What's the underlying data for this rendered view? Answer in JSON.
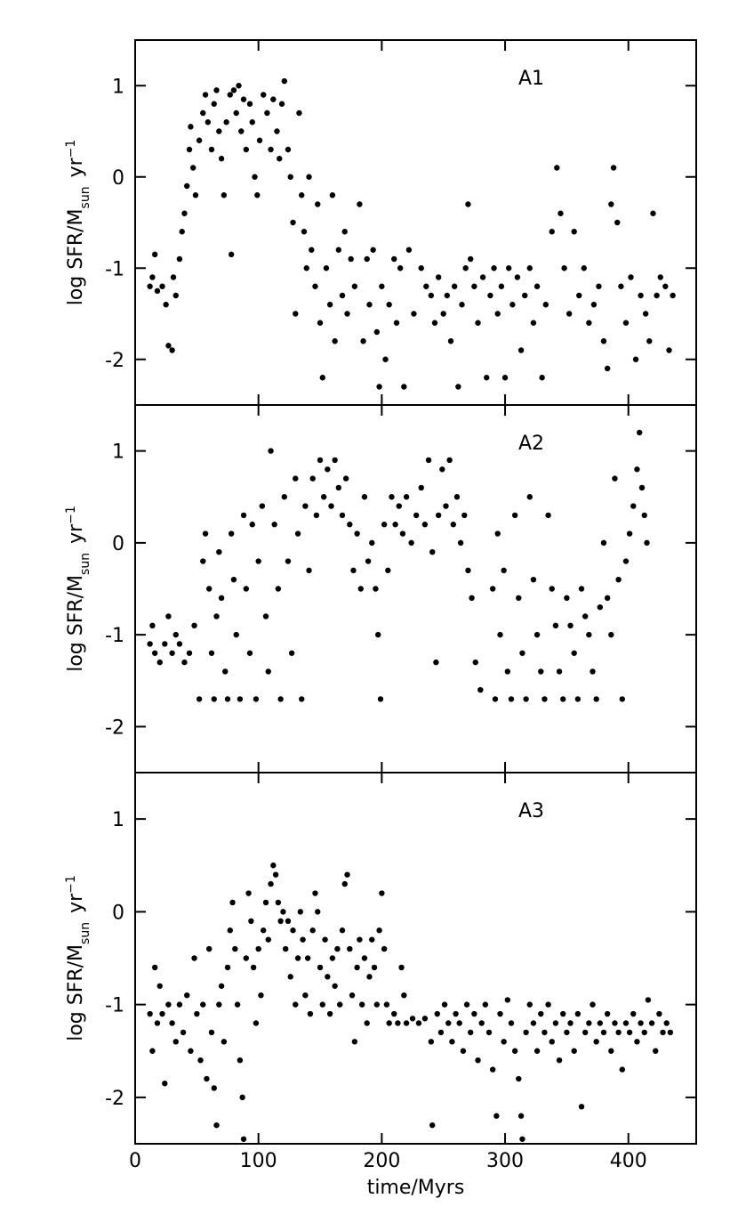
{
  "chart_data": [
    {
      "type": "scatter",
      "label": "A1",
      "ylabel": {
        "main": "log  SFR/M",
        "sub": "sun",
        "unit": "yr",
        "sup": "−1"
      },
      "xlim": [
        0,
        455
      ],
      "ylim": [
        -2.5,
        1.5
      ],
      "xticks": [
        0,
        100,
        200,
        300,
        400
      ],
      "yticks": [
        -2,
        -1,
        0,
        1
      ],
      "xtick_labels": false,
      "series": [
        {
          "color": "#000000",
          "x": [
            12,
            14,
            16,
            18,
            22,
            25,
            27,
            30,
            31,
            33,
            36,
            38,
            40,
            42,
            44,
            45,
            47,
            49,
            52,
            55,
            57,
            59,
            62,
            64,
            66,
            68,
            70,
            72,
            74,
            77,
            78,
            80,
            82,
            84,
            86,
            88,
            90,
            93,
            95,
            97,
            99,
            101,
            104,
            107,
            110,
            112,
            115,
            117,
            119,
            121,
            124,
            126,
            128,
            130,
            133,
            135,
            137,
            139,
            141,
            143,
            146,
            148,
            150,
            152,
            155,
            158,
            160,
            162,
            165,
            168,
            170,
            172,
            175,
            178,
            182,
            185,
            188,
            190,
            193,
            196,
            198,
            200,
            203,
            206,
            210,
            212,
            215,
            218,
            222,
            226,
            232,
            236,
            240,
            243,
            246,
            250,
            253,
            256,
            259,
            262,
            265,
            268,
            270,
            272,
            275,
            278,
            282,
            285,
            288,
            291,
            294,
            297,
            300,
            303,
            306,
            310,
            313,
            316,
            320,
            323,
            326,
            330,
            333,
            338,
            342,
            345,
            348,
            352,
            356,
            360,
            364,
            368,
            372,
            376,
            380,
            383,
            386,
            388,
            391,
            394,
            398,
            402,
            406,
            410,
            414,
            417,
            420,
            423,
            426,
            430,
            433,
            436
          ],
          "values": [
            -1.2,
            -1.1,
            -0.85,
            -1.25,
            -1.2,
            -1.4,
            -1.85,
            -1.9,
            -1.1,
            -1.3,
            -0.9,
            -0.6,
            -0.4,
            -0.1,
            0.3,
            0.55,
            0.1,
            -0.2,
            0.4,
            0.7,
            0.9,
            0.6,
            0.3,
            0.8,
            0.95,
            0.5,
            0.2,
            -0.2,
            0.6,
            0.9,
            -0.85,
            0.95,
            0.7,
            1.0,
            0.5,
            0.85,
            0.3,
            0.8,
            0.6,
            0.0,
            -0.2,
            0.4,
            0.9,
            0.7,
            0.3,
            0.85,
            0.5,
            0.2,
            0.8,
            1.05,
            0.3,
            0.0,
            -0.5,
            -1.5,
            0.7,
            -0.2,
            -0.6,
            -1.0,
            0.0,
            -0.8,
            -1.2,
            -0.3,
            -1.6,
            -2.2,
            -1.0,
            -1.4,
            -0.2,
            -1.8,
            -0.8,
            -1.3,
            -0.6,
            -1.5,
            -0.9,
            -1.2,
            -0.3,
            -1.8,
            -0.9,
            -1.4,
            -0.8,
            -1.7,
            -2.3,
            -1.2,
            -2.0,
            -1.4,
            -0.9,
            -1.6,
            -1.0,
            -2.3,
            -0.8,
            -1.5,
            -1.0,
            -1.2,
            -1.3,
            -1.6,
            -1.1,
            -1.5,
            -1.3,
            -1.8,
            -1.2,
            -2.3,
            -1.4,
            -1.0,
            -0.3,
            -0.9,
            -1.2,
            -1.6,
            -1.1,
            -2.2,
            -1.3,
            -1.0,
            -1.5,
            -1.2,
            -2.2,
            -1.0,
            -1.4,
            -1.1,
            -1.9,
            -1.3,
            -1.0,
            -1.6,
            -1.2,
            -2.2,
            -1.4,
            -0.6,
            0.1,
            -0.4,
            -1.0,
            -1.5,
            -0.6,
            -1.3,
            -1.0,
            -1.6,
            -1.4,
            -1.2,
            -1.8,
            -2.1,
            -0.3,
            0.1,
            -0.5,
            -1.2,
            -1.6,
            -1.1,
            -2.0,
            -1.3,
            -1.5,
            -1.8,
            -0.4,
            -1.3,
            -1.1,
            -1.2,
            -1.9,
            -1.3
          ]
        }
      ]
    },
    {
      "type": "scatter",
      "label": "A2",
      "ylabel": {
        "main": "log  SFR/M",
        "sub": "sun",
        "unit": "yr",
        "sup": "−1"
      },
      "xlim": [
        0,
        455
      ],
      "ylim": [
        -2.5,
        1.5
      ],
      "xticks": [
        0,
        100,
        200,
        300,
        400
      ],
      "yticks": [
        -2,
        -1,
        0,
        1
      ],
      "xtick_labels": false,
      "series": [
        {
          "color": "#000000",
          "x": [
            12,
            14,
            16,
            20,
            24,
            27,
            30,
            33,
            36,
            40,
            44,
            48,
            52,
            55,
            57,
            60,
            62,
            64,
            66,
            68,
            70,
            73,
            75,
            78,
            80,
            82,
            85,
            88,
            90,
            93,
            95,
            98,
            100,
            103,
            106,
            108,
            110,
            113,
            116,
            118,
            121,
            124,
            127,
            130,
            132,
            135,
            138,
            141,
            144,
            147,
            150,
            153,
            156,
            159,
            162,
            165,
            168,
            171,
            174,
            177,
            180,
            183,
            186,
            189,
            192,
            195,
            197,
            199,
            202,
            205,
            208,
            211,
            214,
            217,
            220,
            224,
            228,
            232,
            235,
            238,
            241,
            244,
            246,
            249,
            252,
            255,
            258,
            261,
            264,
            267,
            270,
            273,
            276,
            280,
            290,
            292,
            294,
            296,
            299,
            302,
            305,
            308,
            311,
            314,
            317,
            320,
            323,
            326,
            329,
            332,
            335,
            338,
            341,
            344,
            347,
            350,
            353,
            356,
            359,
            362,
            365,
            368,
            371,
            374,
            377,
            380,
            383,
            386,
            389,
            392,
            395,
            398,
            401,
            404,
            407,
            409,
            411,
            413,
            415
          ],
          "values": [
            -1.1,
            -0.9,
            -1.2,
            -1.3,
            -1.1,
            -0.8,
            -1.2,
            -1.0,
            -1.1,
            -1.3,
            -1.2,
            -0.9,
            -1.7,
            -0.2,
            0.1,
            -0.5,
            -1.2,
            -1.7,
            -0.8,
            -0.1,
            -0.6,
            -1.4,
            -1.7,
            0.1,
            -0.4,
            -1.0,
            -1.7,
            0.3,
            -0.5,
            -1.2,
            0.2,
            -1.7,
            -0.2,
            0.4,
            -0.8,
            -1.4,
            1.0,
            0.2,
            -0.5,
            -1.7,
            0.5,
            -0.2,
            -1.2,
            0.7,
            0.1,
            -1.7,
            0.4,
            -0.3,
            0.7,
            0.3,
            0.9,
            0.5,
            0.8,
            0.4,
            0.9,
            0.6,
            0.3,
            0.7,
            0.2,
            -0.3,
            0.1,
            -0.5,
            0.5,
            -0.2,
            0.0,
            -0.5,
            -1.0,
            -1.7,
            0.2,
            -0.3,
            0.5,
            0.2,
            0.4,
            0.1,
            0.5,
            0.0,
            0.3,
            0.6,
            0.2,
            0.9,
            -0.1,
            -1.3,
            0.3,
            0.8,
            0.4,
            0.9,
            0.2,
            0.5,
            0.0,
            0.3,
            -0.3,
            -0.6,
            -1.3,
            -1.6,
            -0.5,
            -1.7,
            0.1,
            -1.0,
            -0.3,
            -1.4,
            -1.7,
            0.3,
            -0.6,
            -1.2,
            -1.7,
            0.5,
            -0.4,
            -1.0,
            -1.4,
            -1.7,
            0.3,
            -0.5,
            -0.9,
            -1.4,
            -1.7,
            -0.6,
            -0.9,
            -1.2,
            -1.7,
            -0.5,
            -0.8,
            -1.0,
            -1.4,
            -1.7,
            -0.7,
            0.0,
            -0.6,
            -1.0,
            0.7,
            -0.4,
            -1.7,
            -0.2,
            0.1,
            0.4,
            0.8,
            1.2,
            0.6,
            0.3,
            0.0
          ]
        }
      ]
    },
    {
      "type": "scatter",
      "label": "A3",
      "xlabel": "time/Myrs",
      "ylabel": {
        "main": "log  SFR/M",
        "sub": "sun",
        "unit": "yr",
        "sup": "−1"
      },
      "xlim": [
        0,
        455
      ],
      "ylim": [
        -2.5,
        1.5
      ],
      "xticks": [
        0,
        100,
        200,
        300,
        400
      ],
      "yticks": [
        -2,
        -1,
        0,
        1
      ],
      "xtick_labels": true,
      "series": [
        {
          "color": "#000000",
          "x": [
            12,
            14,
            16,
            18,
            20,
            22,
            24,
            27,
            30,
            33,
            36,
            39,
            42,
            45,
            48,
            50,
            53,
            55,
            58,
            60,
            62,
            64,
            66,
            68,
            70,
            72,
            75,
            77,
            79,
            81,
            83,
            85,
            87,
            88,
            90,
            92,
            94,
            96,
            98,
            100,
            102,
            104,
            106,
            108,
            110,
            112,
            114,
            116,
            118,
            120,
            122,
            124,
            126,
            128,
            130,
            132,
            134,
            136,
            138,
            140,
            142,
            144,
            146,
            148,
            150,
            152,
            154,
            156,
            158,
            160,
            162,
            164,
            166,
            168,
            170,
            172,
            174,
            176,
            178,
            180,
            182,
            184,
            186,
            188,
            190,
            192,
            194,
            196,
            198,
            200,
            202,
            204,
            206,
            210,
            213,
            216,
            218,
            220,
            225,
            230,
            235,
            240,
            241,
            245,
            248,
            251,
            254,
            257,
            260,
            263,
            266,
            269,
            272,
            275,
            278,
            281,
            284,
            287,
            290,
            293,
            296,
            299,
            302,
            305,
            308,
            311,
            313,
            314,
            317,
            320,
            323,
            326,
            329,
            332,
            335,
            338,
            341,
            344,
            347,
            350,
            353,
            356,
            359,
            362,
            365,
            368,
            371,
            374,
            377,
            380,
            383,
            386,
            389,
            392,
            395,
            398,
            401,
            404,
            407,
            410,
            413,
            416,
            419,
            422,
            425,
            428,
            431,
            434
          ],
          "values": [
            -1.1,
            -1.5,
            -0.6,
            -1.2,
            -0.8,
            -1.1,
            -1.85,
            -1.0,
            -1.2,
            -1.4,
            -1.0,
            -1.3,
            -0.9,
            -1.5,
            -0.5,
            -1.1,
            -1.6,
            -1.0,
            -1.8,
            -0.4,
            -1.3,
            -1.9,
            -2.3,
            -1.0,
            -0.8,
            -1.4,
            -0.6,
            -0.2,
            0.1,
            -0.4,
            -1.0,
            -1.6,
            -2.0,
            -2.45,
            -0.5,
            0.2,
            -0.1,
            -0.6,
            -1.2,
            -0.4,
            -0.9,
            -0.2,
            0.1,
            -0.3,
            0.3,
            0.5,
            0.4,
            0.1,
            -0.1,
            0.0,
            -0.4,
            -0.1,
            -0.7,
            -0.2,
            -1.0,
            -0.5,
            0.0,
            -0.3,
            -0.9,
            -0.5,
            -1.1,
            -0.2,
            0.2,
            0.0,
            -0.6,
            -1.0,
            -0.3,
            -0.7,
            -1.1,
            -0.5,
            -0.8,
            -0.4,
            -1.0,
            -0.2,
            0.3,
            0.4,
            -0.4,
            -0.9,
            -1.4,
            -0.6,
            -0.3,
            -1.0,
            -0.5,
            -1.2,
            -0.7,
            -0.3,
            -0.6,
            -1.0,
            -0.2,
            0.2,
            -0.4,
            -1.0,
            -1.2,
            -1.1,
            -1.2,
            -0.6,
            -0.9,
            -1.2,
            -1.15,
            -1.2,
            -1.15,
            -1.4,
            -2.3,
            -1.1,
            -1.3,
            -1.0,
            -1.2,
            -1.4,
            -1.1,
            -1.2,
            -1.5,
            -1.0,
            -1.3,
            -1.1,
            -1.6,
            -1.2,
            -1.0,
            -1.3,
            -1.7,
            -2.2,
            -1.1,
            -1.4,
            -0.95,
            -1.2,
            -1.5,
            -1.8,
            -2.2,
            -2.45,
            -1.3,
            -1.0,
            -1.2,
            -1.5,
            -1.1,
            -1.3,
            -1.0,
            -1.4,
            -1.2,
            -1.6,
            -1.1,
            -1.3,
            -1.2,
            -1.5,
            -1.1,
            -2.1,
            -1.3,
            -1.2,
            -1.0,
            -1.4,
            -1.2,
            -1.3,
            -1.1,
            -1.5,
            -1.2,
            -1.3,
            -1.7,
            -1.2,
            -1.3,
            -1.1,
            -1.4,
            -1.2,
            -1.3,
            -0.95,
            -1.2,
            -1.5,
            -1.1,
            -1.3,
            -1.2,
            -1.3
          ]
        }
      ]
    }
  ]
}
